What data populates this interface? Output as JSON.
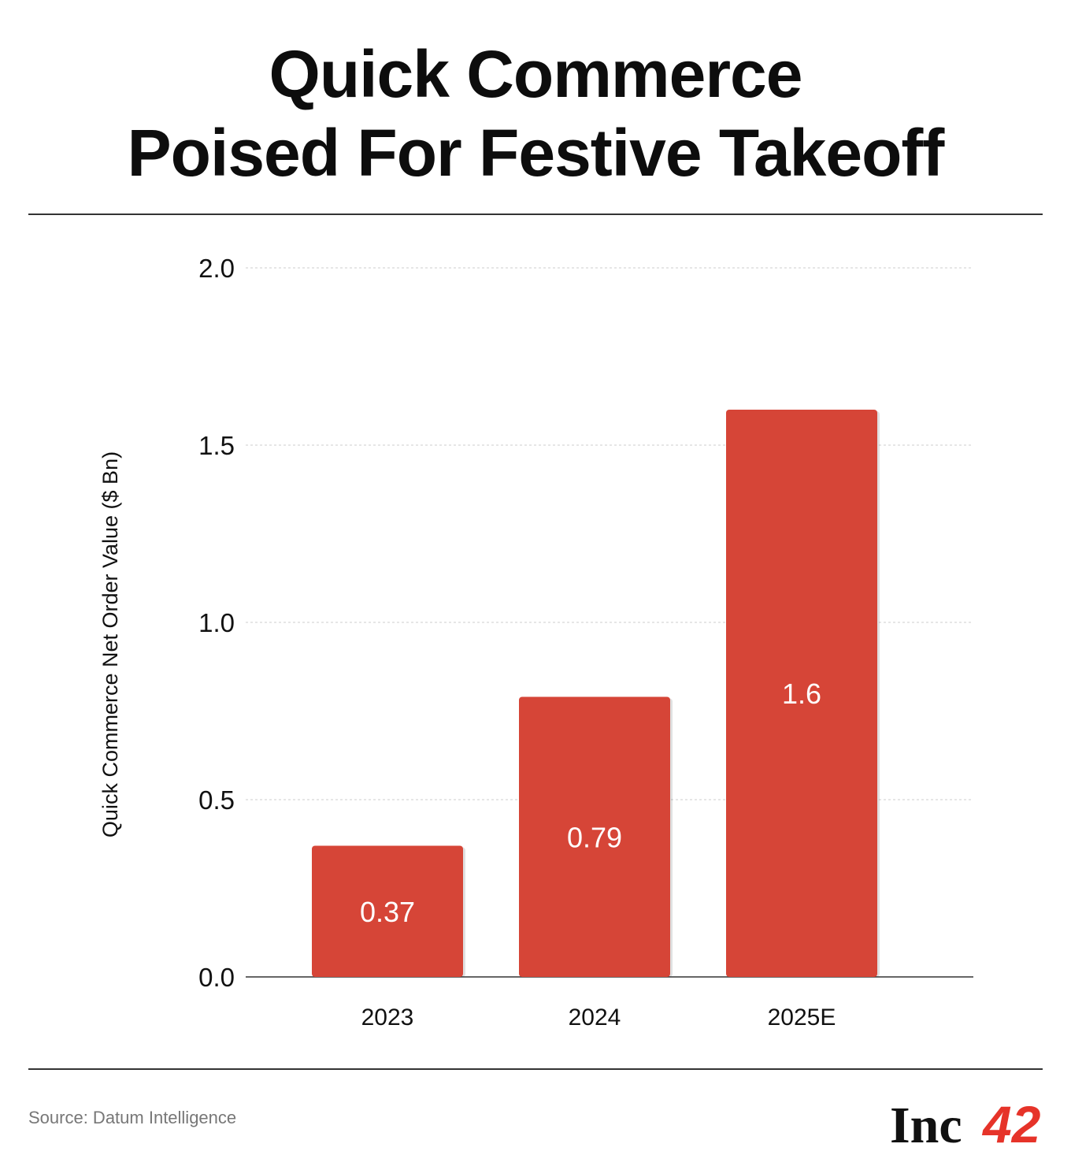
{
  "title_line1": "Quick Commerce",
  "title_line2": "Poised For Festive Takeoff",
  "source": "Source: Datum Intelligence",
  "logo": {
    "name": "Inc42",
    "text_left": "Inc",
    "text_right": "42"
  },
  "colors": {
    "bar": "#D64537",
    "grid": "#cccccc",
    "axis": "#333333",
    "logo_red": "#E63329"
  },
  "chart_data": {
    "type": "bar",
    "categories": [
      "2023",
      "2024",
      "2025E"
    ],
    "values": [
      0.37,
      0.79,
      1.6
    ],
    "data_labels": [
      "0.37",
      "0.79",
      "1.6"
    ],
    "title": "Quick Commerce Poised For Festive Takeoff",
    "xlabel": "",
    "ylabel": "Quick Commerce Net Order Value ($ Bn)",
    "ylim": [
      0,
      2.0
    ],
    "yticks": [
      0.0,
      0.5,
      1.0,
      1.5,
      2.0
    ],
    "ytick_labels": [
      "0.0",
      "0.5",
      "1.0",
      "1.5",
      "2.0"
    ],
    "grid": true
  }
}
